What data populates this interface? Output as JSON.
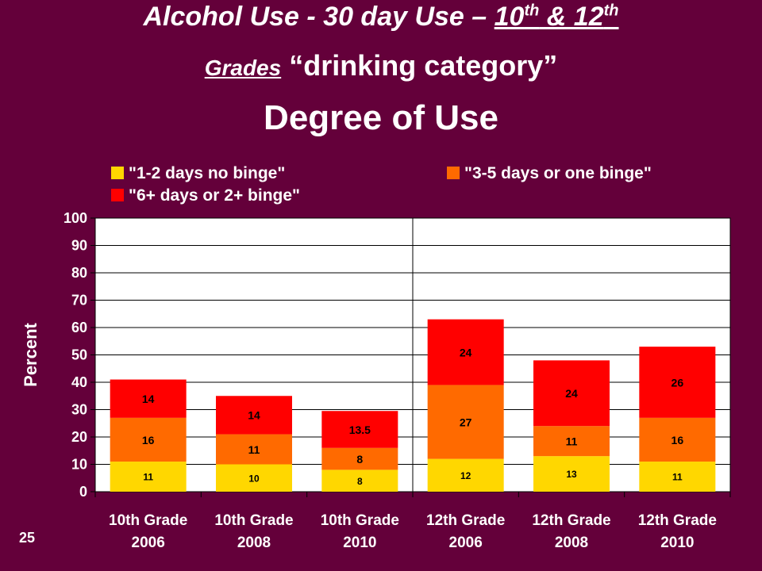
{
  "title": {
    "line1_a": "Alcohol Use - 30 day Use – ",
    "line1_b": "10",
    "line1_sup1": "th",
    "line1_c": " & 12",
    "line1_sup2": "th",
    "line2_grades": "Grades",
    "line2_rest": " “drinking category”",
    "line3": "Degree of Use"
  },
  "page_number": "25",
  "colors": {
    "background": "#64003a",
    "plot_area": "#ffffff",
    "series": [
      "#ffd700",
      "#ff6a00",
      "#ff0000"
    ]
  },
  "chart_data": {
    "type": "bar",
    "stacked": true,
    "categories": [
      [
        "10th Grade",
        "2006"
      ],
      [
        "10th Grade",
        "2008"
      ],
      [
        "10th Grade",
        "2010"
      ],
      [
        "12th Grade",
        "2006"
      ],
      [
        "12th Grade",
        "2008"
      ],
      [
        "12th Grade",
        "2010"
      ]
    ],
    "series": [
      {
        "name": "\"1-2 days no binge\"",
        "values": [
          11,
          10,
          8,
          12,
          13,
          11
        ],
        "labels": [
          "11",
          "10",
          "8",
          "12",
          "13",
          "11"
        ]
      },
      {
        "name": "\"3-5 days or one binge\"",
        "values": [
          16,
          11,
          8,
          27,
          11,
          16
        ],
        "labels": [
          "16",
          "11",
          "8",
          "27",
          "11",
          "16"
        ]
      },
      {
        "name": "\"6+ days or 2+ binge\"",
        "values": [
          14,
          14,
          13.5,
          24,
          24,
          26
        ],
        "labels": [
          "14",
          "14",
          "13.5",
          "24",
          "24",
          "26"
        ]
      }
    ],
    "ylabel": "Percent",
    "ylim": [
      0,
      100
    ],
    "yticks": [
      0,
      10,
      20,
      30,
      40,
      50,
      60,
      70,
      80,
      90,
      100
    ],
    "grid": true,
    "legend_position": "top"
  }
}
